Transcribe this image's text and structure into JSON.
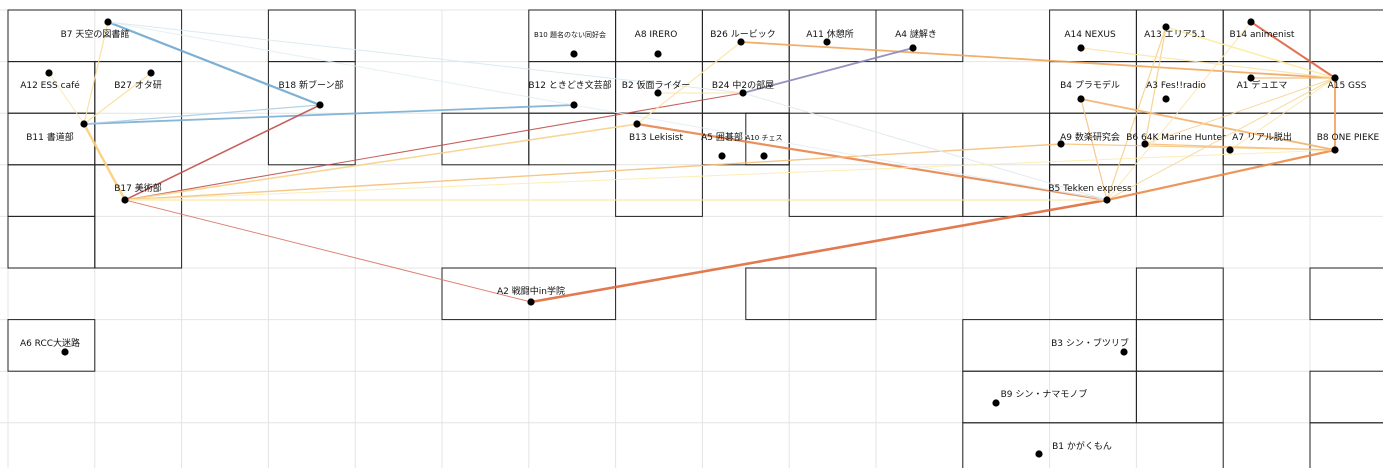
{
  "rooms": [
    {
      "id": "B7",
      "label": "B7 天空の図書館"
    },
    {
      "id": "B10",
      "label": "B10 題名のない同好会",
      "small": true
    },
    {
      "id": "A8",
      "label": "A8 IRERO"
    },
    {
      "id": "B26",
      "label": "B26 ルービック"
    },
    {
      "id": "A11",
      "label": "A11 休憩所"
    },
    {
      "id": "A4",
      "label": "A4 謎解き"
    },
    {
      "id": "A14",
      "label": "A14 NEXUS"
    },
    {
      "id": "A13",
      "label": "A13 エリア5.1"
    },
    {
      "id": "B14",
      "label": "B14 animenist"
    },
    {
      "id": "A12",
      "label": "A12 ESS café"
    },
    {
      "id": "B27",
      "label": "B27 オタ研"
    },
    {
      "id": "B18",
      "label": "B18 新ブーン部"
    },
    {
      "id": "B12",
      "label": "B12 ときどき文芸部"
    },
    {
      "id": "B2",
      "label": "B2 仮面ライダー"
    },
    {
      "id": "B24",
      "label": "B24 中2の部屋"
    },
    {
      "id": "B4",
      "label": "B4 プラモデル"
    },
    {
      "id": "A3",
      "label": "A3 Fes!!radio"
    },
    {
      "id": "A1",
      "label": "A1 デュエマ"
    },
    {
      "id": "A15",
      "label": "A15 GSS"
    },
    {
      "id": "B11",
      "label": "B11 書道部"
    },
    {
      "id": "B13",
      "label": "B13 Lekisist"
    },
    {
      "id": "A5",
      "label": "A5 囲碁部"
    },
    {
      "id": "A10",
      "label": "A10 チェス",
      "small": true
    },
    {
      "id": "A9",
      "label": "A9 数楽研究会"
    },
    {
      "id": "B6",
      "label": "B6 64K Marine Hunter"
    },
    {
      "id": "A7",
      "label": "A7 リアル脱出"
    },
    {
      "id": "B8",
      "label": "B8 ONE PIEKE"
    },
    {
      "id": "B17",
      "label": "B17 美術部"
    },
    {
      "id": "B5",
      "label": "B5 Tekken express"
    },
    {
      "id": "A2",
      "label": "A2 戦闘中in学院"
    },
    {
      "id": "A6",
      "label": "A6 RCC大迷路"
    },
    {
      "id": "B3",
      "label": "B3 シン・ブツリブ"
    },
    {
      "id": "B9",
      "label": "B9 シン・ナマモノブ"
    },
    {
      "id": "B1",
      "label": "B1 かがくもん"
    }
  ],
  "edges": [
    {
      "from": "B7",
      "to": "B18",
      "color": "#6fa8cf",
      "weight": 2.2
    },
    {
      "from": "B11",
      "to": "B12",
      "color": "#7aaed2",
      "weight": 1.8
    },
    {
      "from": "B18",
      "to": "B17",
      "color": "#c0504d",
      "weight": 1.6
    },
    {
      "from": "B17",
      "to": "B24",
      "color": "#c0504d",
      "weight": 1.1
    },
    {
      "from": "B17",
      "to": "A2",
      "color": "#d9786a",
      "weight": 1.0
    },
    {
      "from": "A2",
      "to": "B5",
      "color": "#e06a3c",
      "weight": 2.6
    },
    {
      "from": "B5",
      "to": "B8",
      "color": "#ec8a48",
      "weight": 2.2
    },
    {
      "from": "B8",
      "to": "A15",
      "color": "#f0a55c",
      "weight": 2.0
    },
    {
      "from": "A15",
      "to": "B14",
      "color": "#e0603f",
      "weight": 2.0
    },
    {
      "from": "B26",
      "to": "A15",
      "color": "#f0a55c",
      "weight": 1.8
    },
    {
      "from": "B24",
      "to": "A4",
      "color": "#8887b8",
      "weight": 1.8
    },
    {
      "from": "B13",
      "to": "B5",
      "color": "#e8844a",
      "weight": 2.2
    },
    {
      "from": "B4",
      "to": "B8",
      "color": "#f2b06a",
      "weight": 1.8
    },
    {
      "from": "B4",
      "to": "B5",
      "color": "#f6c27c",
      "weight": 1.2
    },
    {
      "from": "B17",
      "to": "A9",
      "color": "#f5c07a",
      "weight": 1.4
    },
    {
      "from": "B17",
      "to": "B13",
      "color": "#f7d08a",
      "weight": 1.6
    },
    {
      "from": "B17",
      "to": "B5",
      "color": "#fbe7a2",
      "weight": 1.2
    },
    {
      "from": "B17",
      "to": "B8",
      "color": "#fcecae",
      "weight": 1.0
    },
    {
      "from": "B11",
      "to": "B17",
      "color": "#f7cf77",
      "weight": 2.4
    },
    {
      "from": "B7",
      "to": "B11",
      "color": "#f9dd98",
      "weight": 1.2
    },
    {
      "from": "B27",
      "to": "B11",
      "color": "#f9dd98",
      "weight": 1.2
    },
    {
      "from": "A12",
      "to": "B11",
      "color": "#fbe6b0",
      "weight": 1.0
    },
    {
      "from": "B11",
      "to": "B18",
      "color": "#a9cce3",
      "weight": 1.2
    },
    {
      "from": "B7",
      "to": "B24",
      "color": "#d8e8f0",
      "weight": 1.0
    },
    {
      "from": "B7",
      "to": "B5",
      "color": "#e2eef4",
      "weight": 1.0
    },
    {
      "from": "B13",
      "to": "B26",
      "color": "#fbe3a4",
      "weight": 1.2
    },
    {
      "from": "B2",
      "to": "B24",
      "color": "#fbe3a4",
      "weight": 1.0
    },
    {
      "from": "A13",
      "to": "A15",
      "color": "#fcec9e",
      "weight": 1.6
    },
    {
      "from": "A13",
      "to": "B5",
      "color": "#f7cf8a",
      "weight": 1.2
    },
    {
      "from": "A13",
      "to": "B6",
      "color": "#f7cf8a",
      "weight": 1.2
    },
    {
      "from": "A14",
      "to": "A15",
      "color": "#fbe3a4",
      "weight": 1.2
    },
    {
      "from": "B6",
      "to": "B8",
      "color": "#f6c07a",
      "weight": 1.2
    },
    {
      "from": "B6",
      "to": "A15",
      "color": "#f8d592",
      "weight": 1.0
    },
    {
      "from": "A7",
      "to": "A15",
      "color": "#fbe3a4",
      "weight": 1.0
    },
    {
      "from": "A1",
      "to": "A15",
      "color": "#f4b87c",
      "weight": 1.2
    },
    {
      "from": "B5",
      "to": "A15",
      "color": "#f8d592",
      "weight": 1.0
    },
    {
      "from": "A9",
      "to": "B8",
      "color": "#f6c27c",
      "weight": 1.2
    },
    {
      "from": "B24",
      "to": "B5",
      "color": "#dfe9f0",
      "weight": 1.0
    },
    {
      "from": "B5",
      "to": "B14",
      "color": "#fbe6b0",
      "weight": 1.0
    }
  ]
}
